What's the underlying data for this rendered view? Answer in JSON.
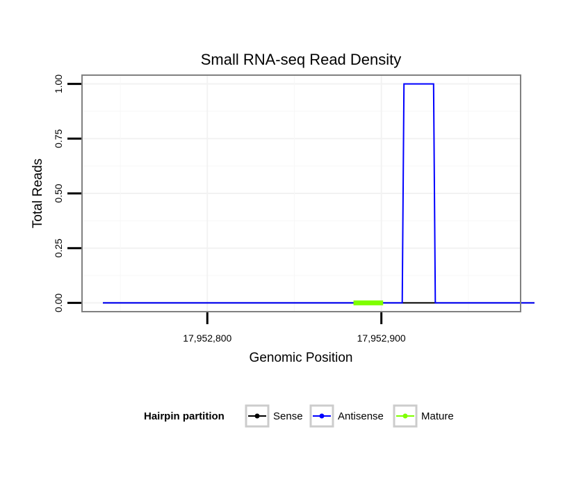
{
  "chart_data": {
    "type": "line",
    "title": "Small RNA-seq Read Density",
    "xlabel": "Genomic Position",
    "ylabel": "Total Reads",
    "xlim": [
      17952728,
      17952980
    ],
    "ylim": [
      -0.04,
      1.04
    ],
    "xticks": [
      17952800,
      17952900
    ],
    "xtick_labels": [
      "17,952,800",
      "17,952,900"
    ],
    "yticks": [
      0.0,
      0.25,
      0.5,
      0.75,
      1.0
    ],
    "ytick_labels": [
      "0.00",
      "0.25",
      "0.50",
      "0.75",
      "1.00"
    ],
    "grid": true,
    "legend_position": "bottom",
    "legend_title": "Hairpin partition",
    "series": [
      {
        "name": "Sense",
        "color": "#000000",
        "x": [
          17952740,
          17952988
        ],
        "y": [
          0,
          0
        ]
      },
      {
        "name": "Antisense",
        "color": "#0000ff",
        "x": [
          17952740,
          17952912,
          17952913,
          17952930,
          17952931,
          17952988
        ],
        "y": [
          0,
          0,
          1,
          1,
          0,
          0
        ]
      },
      {
        "name": "Mature",
        "color": "#7fff00",
        "x": [
          17952884,
          17952901
        ],
        "y": [
          0,
          0
        ]
      }
    ]
  }
}
